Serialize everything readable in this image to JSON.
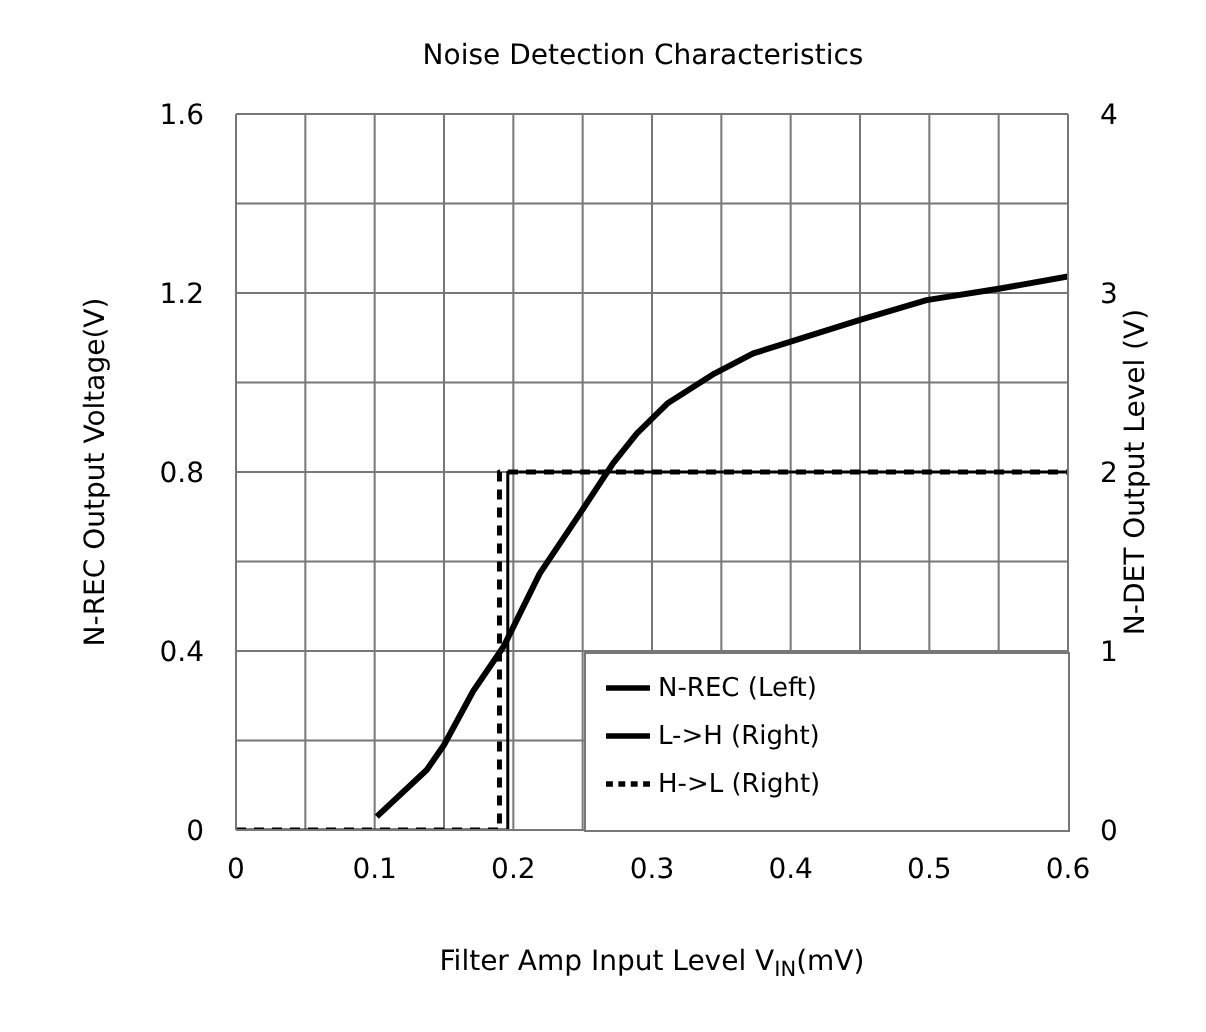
{
  "chart_data": {
    "type": "line",
    "title": "Noise Detection Characteristics",
    "xlabel": "Filter Amp Input Level V$_{IN}$(mV)",
    "ylabel": "N-REC Output Voltage(V)",
    "y2label": "N-DET Output Level (V)",
    "xlim": [
      0,
      0.6
    ],
    "xticks": [
      0,
      {
        "value": 0.05,
        "label": null
      },
      0.1,
      {
        "value": 0.15,
        "label": null
      },
      0.2,
      {
        "value": 0.25,
        "label": null
      },
      0.3,
      {
        "value": 0.35,
        "label": null
      },
      0.4,
      {
        "value": 0.45,
        "label": null
      },
      0.5,
      {
        "value": 0.55,
        "label": null
      },
      0.6
    ],
    "ylim": [
      0,
      1.6
    ],
    "yticks": [
      0,
      {
        "value": 0.2,
        "label": null
      },
      0.4,
      {
        "value": 0.6,
        "label": null
      },
      0.8,
      {
        "value": 1.0,
        "label": null
      },
      1.2,
      {
        "value": 1.4,
        "label": null
      },
      1.6
    ],
    "y2lim": [
      0,
      4
    ],
    "y2ticks": [
      0,
      1,
      2,
      3,
      4
    ],
    "grid": true,
    "legend": "bottom right",
    "marker": "none",
    "series": [
      {
        "name": "N-REC (Left)",
        "color": "#000000",
        "line_style": "solid",
        "x": [
          0.1015,
          0.1375,
          0.15,
          0.171,
          0.193,
          0.219,
          0.248,
          0.272,
          0.289,
          0.311,
          0.345,
          0.373,
          0.45,
          0.498,
          0.551,
          0.6
        ],
        "values": [
          0.03,
          0.134,
          0.19,
          0.31,
          0.41,
          0.573,
          0.707,
          0.82,
          0.886,
          0.953,
          1.02,
          1.065,
          1.14,
          1.184,
          1.21,
          1.237
        ]
      },
      {
        "name": "L->H (Right)",
        "color": "#000000",
        "line_style": "solid",
        "axis": "y2",
        "x": [
          0,
          0.196,
          0.196,
          0.6
        ],
        "values": [
          0,
          0,
          2,
          2
        ]
      },
      {
        "name": "H->L (Right)",
        "color": "#000000",
        "line_style": "dashed",
        "axis": "y2",
        "x": [
          0,
          0.19,
          0.19,
          0.6
        ],
        "values": [
          0,
          0,
          2,
          2
        ]
      }
    ]
  }
}
